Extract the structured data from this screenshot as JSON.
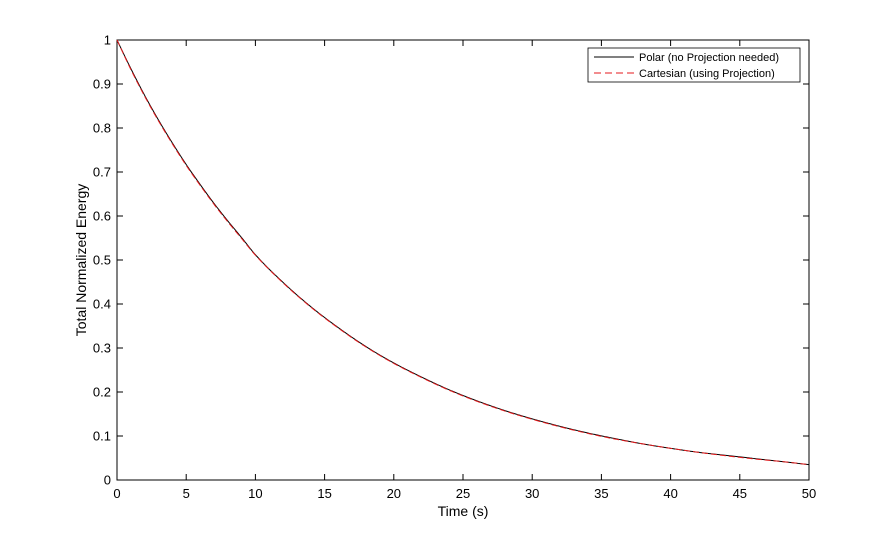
{
  "chart_data": {
    "type": "line",
    "title": "",
    "xlabel": "Time (s)",
    "ylabel": "Total Normalized Energy",
    "xlim": [
      0,
      50
    ],
    "ylim": [
      0,
      1
    ],
    "xticks": [
      0,
      5,
      10,
      15,
      20,
      25,
      30,
      35,
      40,
      45,
      50
    ],
    "yticks": [
      0,
      0.1,
      0.2,
      0.3,
      0.4,
      0.5,
      0.6,
      0.7,
      0.8,
      0.9,
      1
    ],
    "xtick_labels": [
      "0",
      "5",
      "10",
      "15",
      "20",
      "25",
      "30",
      "35",
      "40",
      "45",
      "50"
    ],
    "ytick_labels": [
      "0",
      "0.1",
      "0.2",
      "0.3",
      "0.4",
      "0.5",
      "0.6",
      "0.7",
      "0.8",
      "0.9",
      "1"
    ],
    "grid": false,
    "legend_position": "top-right",
    "series": [
      {
        "name": "Polar (no Projection needed)",
        "color": "#000000",
        "dash": "solid",
        "x": [
          0,
          1,
          2,
          3,
          4,
          5,
          6,
          7,
          8,
          9,
          10,
          12,
          14,
          16,
          18,
          20,
          22,
          24,
          26,
          28,
          30,
          32,
          34,
          36,
          38,
          40,
          42,
          44,
          46,
          48,
          50
        ],
        "y": [
          1.0,
          0.935,
          0.874,
          0.818,
          0.766,
          0.717,
          0.672,
          0.629,
          0.589,
          0.551,
          0.512,
          0.449,
          0.394,
          0.346,
          0.303,
          0.266,
          0.234,
          0.205,
          0.18,
          0.158,
          0.139,
          0.122,
          0.107,
          0.094,
          0.082,
          0.072,
          0.063,
          0.056,
          0.049,
          0.042,
          0.035
        ]
      },
      {
        "name": "Cartesian (using Projection)",
        "color": "#e41a1c",
        "dash": "dashed",
        "x": [
          0,
          1,
          2,
          3,
          4,
          5,
          6,
          7,
          8,
          9,
          10,
          12,
          14,
          16,
          18,
          20,
          22,
          24,
          26,
          28,
          30,
          32,
          34,
          36,
          38,
          40,
          42,
          44,
          46,
          48,
          50
        ],
        "y": [
          1.0,
          0.933,
          0.872,
          0.816,
          0.764,
          0.715,
          0.67,
          0.627,
          0.587,
          0.549,
          0.511,
          0.448,
          0.393,
          0.345,
          0.302,
          0.265,
          0.233,
          0.204,
          0.179,
          0.157,
          0.138,
          0.121,
          0.106,
          0.093,
          0.082,
          0.072,
          0.063,
          0.055,
          0.048,
          0.042,
          0.035
        ]
      }
    ]
  }
}
